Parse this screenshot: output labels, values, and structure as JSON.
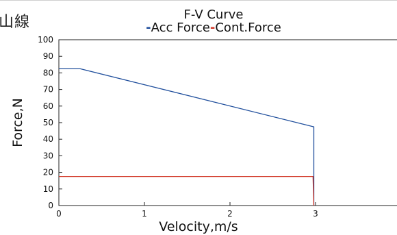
{
  "corner_text": "⼭線",
  "chart_data": {
    "type": "line",
    "title": "F-V Curve",
    "legend": [
      {
        "label": "Acc Force",
        "color": "#1f4e9c"
      },
      {
        "label": "Cont.Force",
        "color": "#d23a2a"
      }
    ],
    "xlabel": "Velocity,m/s",
    "ylabel": "Force,N",
    "xlim": [
      0,
      4
    ],
    "ylim": [
      0,
      100
    ],
    "xticks": [
      0,
      1,
      2,
      3
    ],
    "yticks": [
      0,
      10,
      20,
      30,
      40,
      50,
      60,
      70,
      80,
      90,
      100
    ],
    "grid": false,
    "series": [
      {
        "name": "Acc Force",
        "color": "#1f4e9c",
        "points": [
          [
            0,
            82.5
          ],
          [
            0.25,
            82.5
          ],
          [
            2.98,
            47.5
          ],
          [
            2.98,
            0
          ]
        ]
      },
      {
        "name": "Cont.Force",
        "color": "#d23a2a",
        "points": [
          [
            0,
            17.5
          ],
          [
            2.97,
            17.5
          ],
          [
            2.98,
            0
          ]
        ]
      }
    ]
  }
}
